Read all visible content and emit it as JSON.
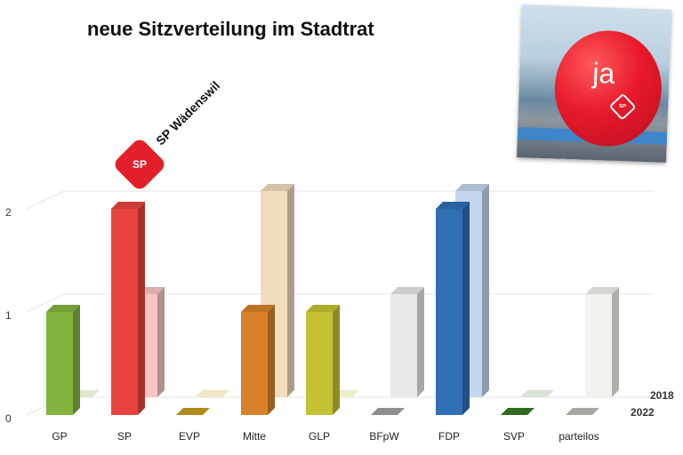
{
  "title": "neue Sitzverteilung im Stadtrat",
  "brand": {
    "logo_text": "SP",
    "name": "SP Wädenswil"
  },
  "photo": {
    "balloon_text": "ja",
    "balloon_logo_text": "SP"
  },
  "chart_data": {
    "type": "bar",
    "title": "neue Sitzverteilung im Stadtrat",
    "categories": [
      "GP",
      "SP",
      "EVP",
      "Mitte",
      "GLP",
      "BFpW",
      "FDP",
      "SVP",
      "parteilos"
    ],
    "series": [
      {
        "name": "2022",
        "values": [
          1,
          2,
          0,
          1,
          1,
          0,
          2,
          0,
          0
        ],
        "colors": [
          "#84b33e",
          "#e9433f",
          "#b08a1a",
          "#d7812a",
          "#c4c232",
          "#8f8f8f",
          "#2f6fb3",
          "#2e6b1f",
          "#a8a8a0"
        ]
      },
      {
        "name": "2018",
        "values": [
          0,
          1,
          0,
          2,
          0,
          1,
          2,
          0,
          1
        ],
        "colors": [
          "#dfe8d2",
          "#f7c6c4",
          "#f1e3c6",
          "#f1dcbd",
          "#ecefcc",
          "#e9e9e9",
          "#c4d7ee",
          "#d9e4d6",
          "#f2f2ee"
        ]
      }
    ],
    "y_ticks": [
      0,
      1,
      2
    ],
    "ylim": [
      0,
      2
    ],
    "legend": "right, series labels at depth rows",
    "grid": true
  }
}
